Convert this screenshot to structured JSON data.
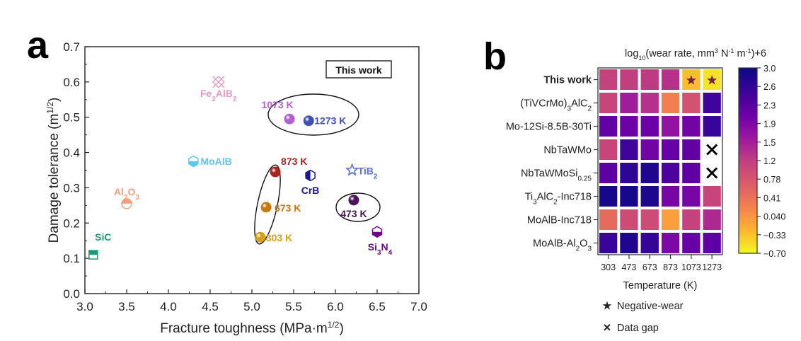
{
  "chart_data": [
    {
      "type": "scatter",
      "panel_label": "a",
      "xlabel": "Fracture toughness (MPa·m",
      "xlabel_sup": "1/2",
      "xlabel_end": ")",
      "ylabel": "Damage tolerance (m",
      "ylabel_sup": "1/2",
      "ylabel_end": ")",
      "xlim": [
        3.0,
        7.0
      ],
      "ylim": [
        0.0,
        0.7
      ],
      "xticks": [
        "3.0",
        "3.5",
        "4.0",
        "4.5",
        "5.0",
        "5.5",
        "6.0",
        "6.5",
        "7.0"
      ],
      "yticks": [
        "0.0",
        "0.1",
        "0.2",
        "0.3",
        "0.4",
        "0.5",
        "0.6",
        "0.7"
      ],
      "legend_box": "This work",
      "points": [
        {
          "name": "SiC",
          "label": "SiC",
          "sub": "",
          "x": 3.1,
          "y": 0.11,
          "marker": "square-half",
          "color": "#1a9a78"
        },
        {
          "name": "Al2O3",
          "label": "Al",
          "sub": "2",
          "label2": "O",
          "sub2": "3",
          "x": 3.5,
          "y": 0.255,
          "marker": "circle-half",
          "color": "#f0a07e"
        },
        {
          "name": "MoAlB",
          "label": "MoAlB",
          "sub": "",
          "x": 4.3,
          "y": 0.375,
          "marker": "hexagon-half",
          "color": "#5cc8ec"
        },
        {
          "name": "Fe2AlB2",
          "label": "Fe",
          "sub": "2",
          "label2": "AlB",
          "sub2": "2",
          "x": 4.6,
          "y": 0.6,
          "marker": "cross-hatch",
          "color": "#e09ac8"
        },
        {
          "name": "CrB",
          "label": "CrB",
          "sub": "",
          "x": 5.7,
          "y": 0.335,
          "marker": "hexagon-left",
          "color": "#1a1a8c"
        },
        {
          "name": "TiB2",
          "label": "TiB",
          "sub": "2",
          "x": 6.2,
          "y": 0.35,
          "marker": "star",
          "color": "#5a70e0"
        },
        {
          "name": "Si3N4",
          "label": "Si",
          "sub": "3",
          "label2": "N",
          "sub2": "4",
          "x": 6.5,
          "y": 0.175,
          "marker": "hexagon-bottom",
          "color": "#6a0a82"
        },
        {
          "name": "303 K",
          "label": "303 K",
          "sub": "",
          "x": 5.1,
          "y": 0.16,
          "marker": "sphere",
          "color": "#d4a017",
          "this_work": true
        },
        {
          "name": "473 K",
          "label": "473 K",
          "sub": "",
          "x": 6.22,
          "y": 0.265,
          "marker": "sphere",
          "color": "#4a1458",
          "this_work": true
        },
        {
          "name": "673 K",
          "label": "673 K",
          "sub": "",
          "x": 5.17,
          "y": 0.245,
          "marker": "sphere",
          "color": "#c8780e",
          "this_work": true
        },
        {
          "name": "873 K",
          "label": "873 K",
          "sub": "",
          "x": 5.28,
          "y": 0.345,
          "marker": "sphere",
          "color": "#a82420",
          "this_work": true
        },
        {
          "name": "1073 K",
          "label": "1073 K",
          "sub": "",
          "x": 5.45,
          "y": 0.495,
          "marker": "sphere",
          "color": "#b060d0",
          "this_work": true
        },
        {
          "name": "1273 K",
          "label": "1273 K",
          "sub": "",
          "x": 5.68,
          "y": 0.49,
          "marker": "sphere",
          "color": "#4050b8",
          "this_work": true
        }
      ],
      "label_colors": {
        "SiC": "#1a9a78",
        "Al2O3": "#f0a07e",
        "MoAlB": "#5cc8ec",
        "Fe2AlB2": "#e09ac8",
        "CrB": "#1a1a8c",
        "TiB2": "#5a70e0",
        "Si3N4": "#6a0a82",
        "303 K": "#d4a017",
        "473 K": "#4a1458",
        "673 K": "#c8780e",
        "873 K": "#a82420",
        "1073 K": "#b060d0",
        "1273 K": "#4050b8"
      }
    },
    {
      "type": "heatmap",
      "panel_label": "b",
      "title": "log",
      "title_sub": "10",
      "title_rest": "(wear rate, mm",
      "title_sup1": "3",
      "title_mid": " N",
      "title_sup2": "-1",
      "title_mid2": " m",
      "title_sup3": "-1",
      "title_end": ")+6",
      "xlabel": "Temperature (K)",
      "columns": [
        "303",
        "473",
        "673",
        "873",
        "1073",
        "1273"
      ],
      "rows": [
        {
          "label": "This work",
          "parts": [
            [
              "This work",
              ""
            ]
          ],
          "highlight": true
        },
        {
          "label": "(TiVCrMo)3AlC2",
          "parts": [
            [
              "(TiVCrMo)",
              "3"
            ],
            [
              "AlC",
              "2"
            ]
          ]
        },
        {
          "label": "Mo-12Si-8.5B-30Ti",
          "parts": [
            [
              "Mo-12Si-8.5B-30Ti",
              ""
            ]
          ]
        },
        {
          "label": "NbTaWMo",
          "parts": [
            [
              "NbTaWMo",
              ""
            ]
          ]
        },
        {
          "label": "NbTaWMoSi0.25",
          "parts": [
            [
              "NbTaWMoSi",
              "0.25"
            ]
          ]
        },
        {
          "label": "Ti3AlC2-Inc718",
          "parts": [
            [
              "Ti",
              "3"
            ],
            [
              "AlC",
              "2"
            ],
            [
              "-Inc718",
              ""
            ]
          ]
        },
        {
          "label": "MoAlB-Inc718",
          "parts": [
            [
              "MoAlB-Inc718",
              ""
            ]
          ]
        },
        {
          "label": "MoAlB-Al2O3",
          "parts": [
            [
              "MoAlB-Al",
              "2"
            ],
            [
              "O",
              "3"
            ]
          ]
        }
      ],
      "values": [
        [
          1.1,
          1.15,
          1.2,
          1.3,
          -0.3,
          -0.55
        ],
        [
          1.05,
          1.55,
          1.3,
          0.25,
          0.85,
          2.5
        ],
        [
          2.15,
          2.05,
          2.05,
          1.7,
          2.0,
          2.55
        ],
        [
          1.05,
          2.5,
          2.0,
          2.1,
          2.15,
          null
        ],
        [
          2.2,
          2.65,
          2.8,
          2.35,
          2.2,
          null
        ],
        [
          2.9,
          2.9,
          2.85,
          1.95,
          1.95,
          1.05
        ],
        [
          0.5,
          0.95,
          0.95,
          -0.05,
          1.1,
          1.4
        ],
        [
          2.55,
          2.8,
          2.6,
          1.9,
          2.1,
          2.2
        ]
      ],
      "markers": [
        {
          "row": 0,
          "col": 4,
          "type": "negative-wear"
        },
        {
          "row": 0,
          "col": 5,
          "type": "negative-wear"
        },
        {
          "row": 3,
          "col": 5,
          "type": "data-gap"
        },
        {
          "row": 4,
          "col": 5,
          "type": "data-gap"
        }
      ],
      "colorbar": {
        "range": [
          -0.7,
          3.0
        ],
        "ticks": [
          "3.0",
          "2.6",
          "2.3",
          "1.9",
          "1.5",
          "1.2",
          "0.78",
          "0.41",
          "0.040",
          "−0.33",
          "−0.70"
        ],
        "colormap": [
          "#f0f921",
          "#fdb42f",
          "#f3814f",
          "#db5c68",
          "#c13f80",
          "#9b179e",
          "#6a00a8",
          "#3a049a",
          "#0d0887"
        ]
      },
      "legend": [
        {
          "symbol": "★",
          "label": "Negative-wear",
          "color": "#7a2040"
        },
        {
          "symbol": "✕",
          "label": "Data gap",
          "color": "#000000"
        }
      ]
    }
  ]
}
